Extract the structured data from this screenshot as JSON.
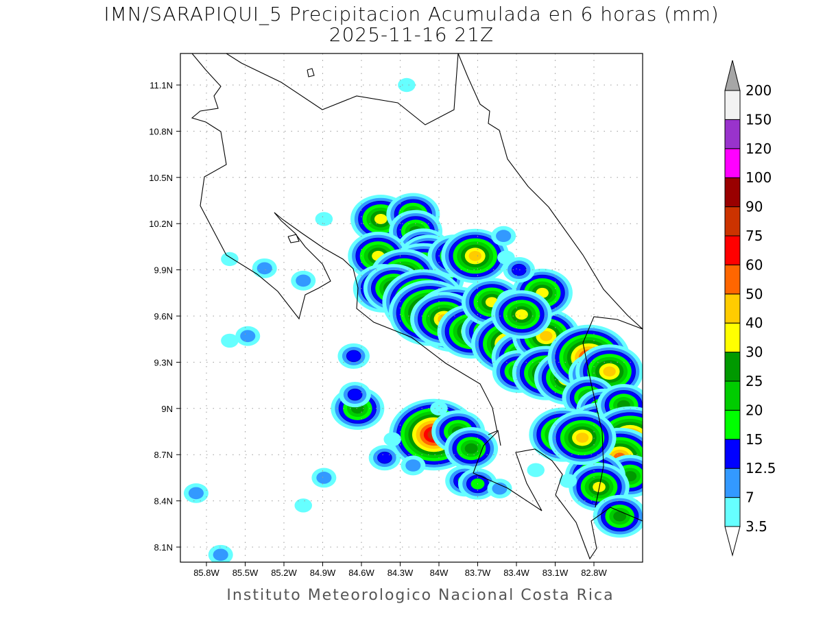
{
  "title": "IMN/SARAPIQUI_5 Precipitacion Acumulada en 6 horas (mm)",
  "subtitle": "2025-11-16 21Z",
  "footer": "Instituto Meteorologico Nacional Costa Rica",
  "chart_data": {
    "type": "heatmap",
    "lon_ticks": [
      "85.8W",
      "85.5W",
      "85.2W",
      "84.9W",
      "84.6W",
      "84.3W",
      "84W",
      "83.7W",
      "83.4W",
      "83.1W",
      "82.8W"
    ],
    "lat_ticks": [
      "11.1N",
      "10.8N",
      "10.5N",
      "10.2N",
      "9.9N",
      "9.6N",
      "9.3N",
      "9N",
      "8.7N",
      "8.4N",
      "8.1N"
    ],
    "lon_range": [
      -86.0,
      -82.4
    ],
    "lat_range": [
      8.0,
      11.3
    ],
    "grid": true,
    "colorbar": {
      "labels": [
        "3.5",
        "7",
        "12.5",
        "15",
        "20",
        "25",
        "30",
        "40",
        "50",
        "60",
        "75",
        "90",
        "100",
        "120",
        "150",
        "200"
      ],
      "colors": [
        "#66ffff",
        "#3399ff",
        "#0000ff",
        "#00ff00",
        "#00cc00",
        "#009900",
        "#ffff00",
        "#ffcc00",
        "#ff6600",
        "#ff0000",
        "#cc3300",
        "#990000",
        "#ff00ff",
        "#9933cc",
        "#f2f2f2"
      ],
      "over_color": "#a6a6a6",
      "under_color": "#ffffff",
      "placement": "right"
    },
    "cells": [
      [
        -84.45,
        10.23,
        30
      ],
      [
        -84.2,
        10.26,
        25
      ],
      [
        -84.18,
        10.15,
        25
      ],
      [
        -84.12,
        10.03,
        25
      ],
      [
        -84.47,
        9.99,
        30
      ],
      [
        -84.08,
        9.97,
        30
      ],
      [
        -84.12,
        9.86,
        60
      ],
      [
        -84.27,
        9.86,
        40
      ],
      [
        -83.88,
        9.99,
        25
      ],
      [
        -83.72,
        9.99,
        40
      ],
      [
        -84.43,
        9.78,
        30
      ],
      [
        -84.35,
        9.78,
        30
      ],
      [
        -84.12,
        9.69,
        60
      ],
      [
        -84.07,
        9.62,
        60
      ],
      [
        -83.88,
        9.58,
        60
      ],
      [
        -83.96,
        9.58,
        40
      ],
      [
        -83.75,
        9.5,
        40
      ],
      [
        -83.62,
        9.5,
        25
      ],
      [
        -83.59,
        9.69,
        30
      ],
      [
        -83.43,
        9.69,
        12.5
      ],
      [
        -83.46,
        9.42,
        50
      ],
      [
        -83.33,
        9.33,
        40
      ],
      [
        -83.38,
        9.24,
        25
      ],
      [
        -83.17,
        9.47,
        40
      ],
      [
        -83.17,
        9.23,
        40
      ],
      [
        -83.2,
        9.75,
        30
      ],
      [
        -83.36,
        9.61,
        30
      ],
      [
        -83.0,
        9.2,
        40
      ],
      [
        -82.84,
        9.33,
        60
      ],
      [
        -82.79,
        9.22,
        25
      ],
      [
        -82.68,
        9.24,
        40
      ],
      [
        -82.84,
        9.07,
        25
      ],
      [
        -82.73,
        8.99,
        25
      ],
      [
        -82.76,
        8.88,
        30
      ],
      [
        -82.57,
        9.02,
        25
      ],
      [
        -82.52,
        8.8,
        60
      ],
      [
        -82.6,
        8.68,
        50
      ],
      [
        -82.52,
        8.56,
        25
      ],
      [
        -82.79,
        8.56,
        30
      ],
      [
        -82.76,
        8.49,
        30
      ],
      [
        -82.6,
        8.3,
        25
      ],
      [
        -83.04,
        8.83,
        40
      ],
      [
        -82.89,
        8.81,
        40
      ],
      [
        -84.04,
        8.83,
        75
      ],
      [
        -83.85,
        8.85,
        25
      ],
      [
        -83.75,
        8.74,
        25
      ],
      [
        -84.63,
        9.0,
        25
      ],
      [
        -84.65,
        9.09,
        12.5
      ],
      [
        -83.8,
        8.53,
        15
      ],
      [
        -83.7,
        8.51,
        15
      ],
      [
        -83.53,
        8.48,
        7
      ],
      [
        -84.2,
        8.63,
        7
      ],
      [
        -84.42,
        8.68,
        12.5
      ],
      [
        -84.89,
        8.55,
        7
      ],
      [
        -85.88,
        8.45,
        7
      ],
      [
        -85.05,
        9.83,
        7
      ],
      [
        -84.66,
        9.34,
        12.5
      ],
      [
        -85.69,
        8.05,
        7
      ],
      [
        -84.36,
        8.8,
        3.5
      ],
      [
        -85.05,
        8.37,
        3.5
      ],
      [
        -83.5,
        10.12,
        7
      ],
      [
        -83.48,
        9.98,
        3.5
      ],
      [
        -83.38,
        9.9,
        12.5
      ],
      [
        -84.89,
        10.23,
        3.5
      ],
      [
        -85.62,
        9.97,
        3.5
      ],
      [
        -85.35,
        9.91,
        7
      ],
      [
        -85.48,
        9.47,
        7
      ],
      [
        -85.62,
        9.44,
        3.5
      ],
      [
        -84.25,
        11.1,
        3.5
      ],
      [
        -83.25,
        8.6,
        3.5
      ],
      [
        -83.0,
        8.53,
        3.5
      ],
      [
        -84.0,
        9.0,
        3.5
      ]
    ]
  }
}
